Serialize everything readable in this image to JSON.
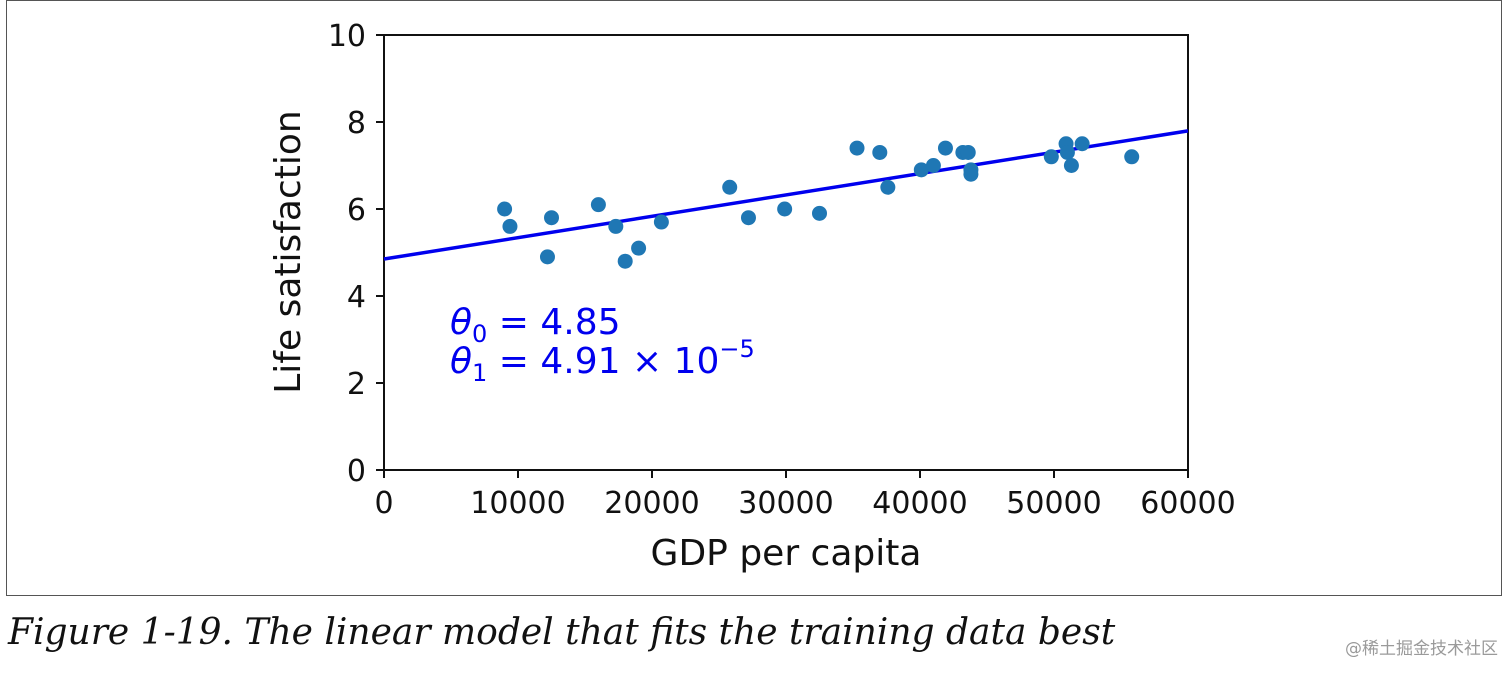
{
  "chart_data": {
    "type": "scatter",
    "xlabel": "GDP per capita",
    "ylabel": "Life satisfaction",
    "xlim": [
      0,
      60000
    ],
    "ylim": [
      0,
      10
    ],
    "xticks": [
      "0",
      "10000",
      "20000",
      "30000",
      "40000",
      "50000",
      "60000"
    ],
    "yticks": [
      "0",
      "2",
      "4",
      "6",
      "8",
      "10"
    ],
    "grid": false,
    "points": {
      "color": "#1f77b4",
      "x": [
        9000,
        9400,
        12200,
        12500,
        16000,
        17300,
        18000,
        19000,
        20700,
        25800,
        27200,
        29900,
        32500,
        35300,
        37000,
        37600,
        40100,
        41000,
        41900,
        43200,
        43600,
        43800,
        43800,
        49800,
        50900,
        51000,
        51300,
        52100,
        55800
      ],
      "y": [
        6.0,
        5.6,
        4.9,
        5.8,
        6.1,
        5.6,
        4.8,
        5.1,
        5.7,
        6.5,
        5.8,
        6.0,
        5.9,
        7.4,
        7.3,
        6.5,
        6.9,
        7.0,
        7.4,
        7.3,
        7.3,
        6.9,
        6.8,
        7.2,
        7.5,
        7.3,
        7.0,
        7.5,
        7.2
      ]
    },
    "fit_line": {
      "color": "#0000ee",
      "intercept": 4.85,
      "slope": 4.91e-05
    },
    "annotations": {
      "theta0_symbol": "θ",
      "theta0_sub": "0",
      "theta0_rest": " = 4.85",
      "theta1_symbol": "θ",
      "theta1_sub": "1",
      "theta1_rest": " = 4.91 × 10",
      "theta1_exp": "−5"
    }
  },
  "caption": "Figure 1-19. The linear model that fits the training data best",
  "watermark": "@稀土掘金技术社区"
}
